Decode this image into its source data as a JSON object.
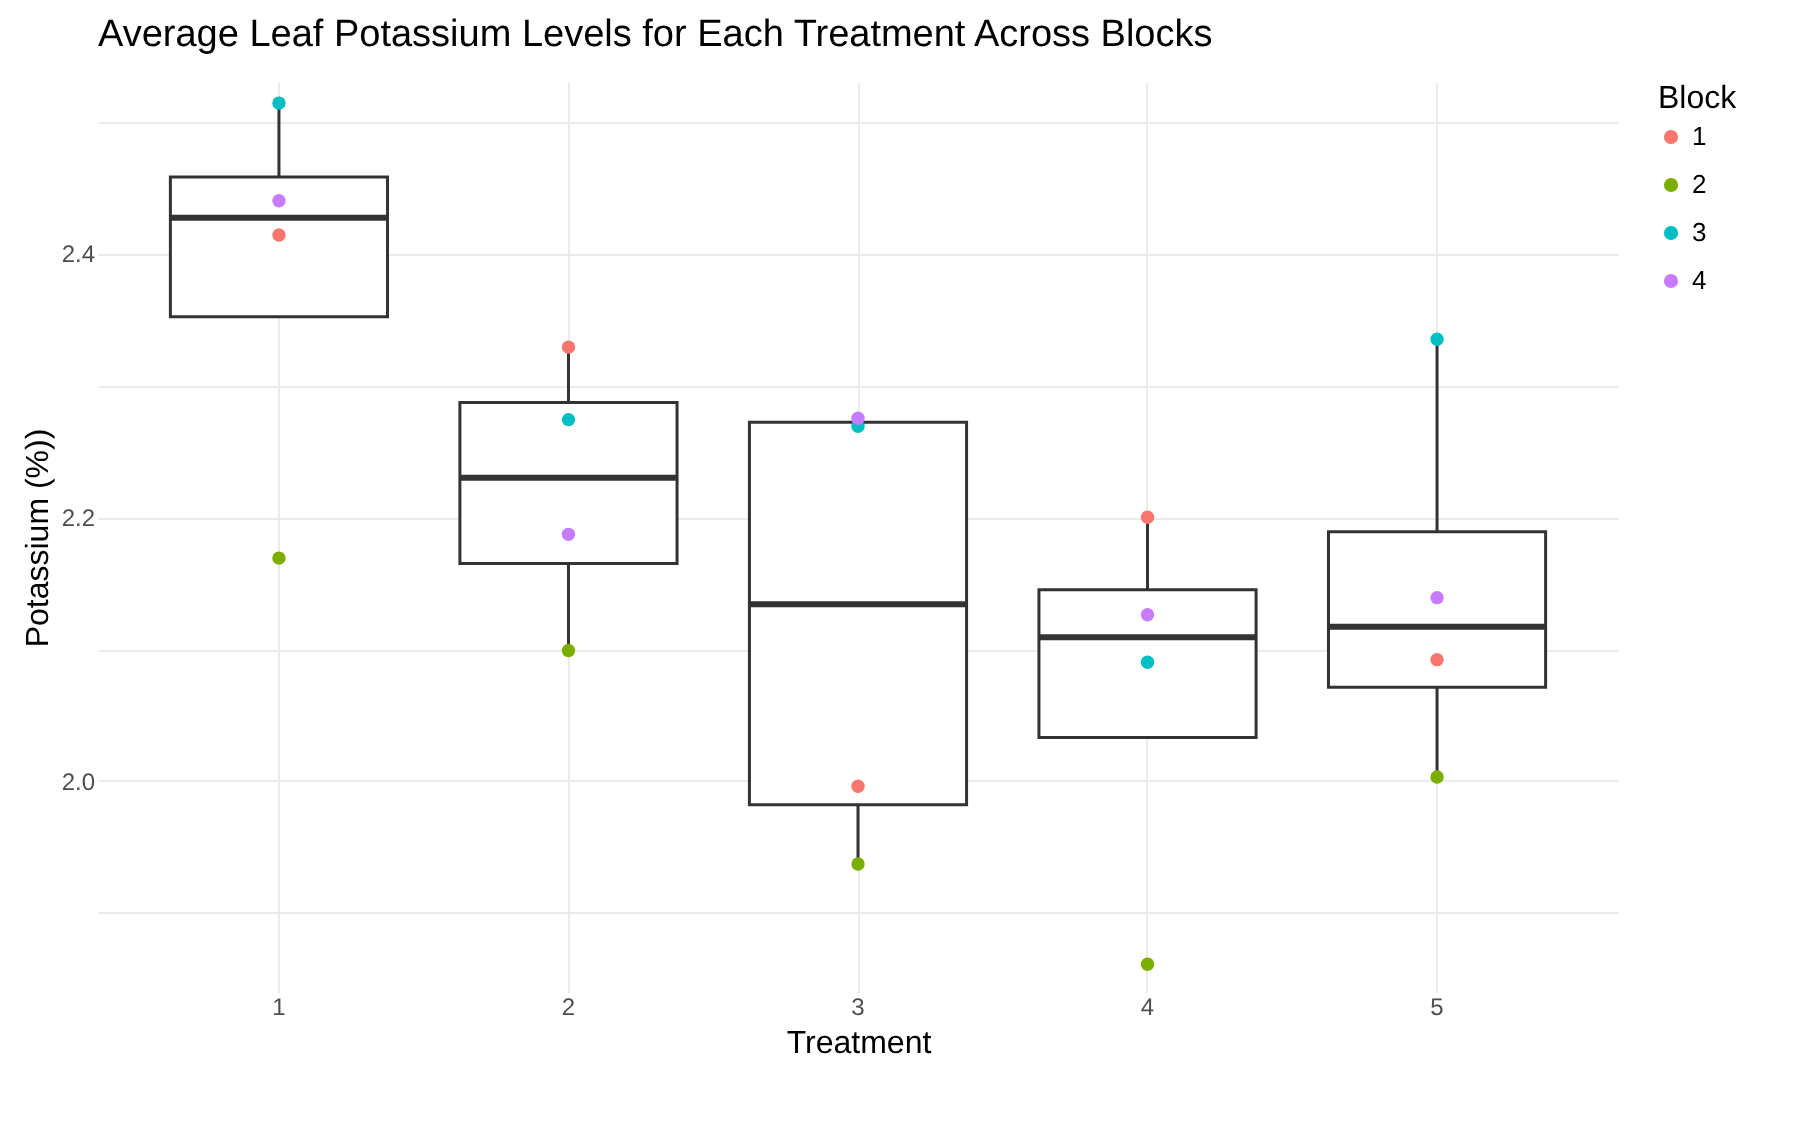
{
  "chart_data": {
    "type": "box",
    "title": "Average Leaf Potassium Levels for Each Treatment Across Blocks",
    "xlabel": "Treatment",
    "ylabel": "Potassium (%))",
    "legend_title": "Block",
    "categories": [
      "1",
      "2",
      "3",
      "4",
      "5"
    ],
    "boxes": [
      {
        "low": 2.352,
        "q1": 2.352,
        "median": 2.427,
        "q3": 2.458,
        "high": 2.514
      },
      {
        "low": 2.099,
        "q1": 2.165,
        "median": 2.23,
        "q3": 2.287,
        "high": 2.329
      },
      {
        "low": 1.937,
        "q1": 1.982,
        "median": 2.134,
        "q3": 2.272,
        "high": 2.275
      },
      {
        "low": 2.033,
        "q1": 2.033,
        "median": 2.109,
        "q3": 2.145,
        "high": 2.2
      },
      {
        "low": 2.003,
        "q1": 2.071,
        "median": 2.117,
        "q3": 2.189,
        "high": 2.335
      }
    ],
    "series": [
      {
        "name": "1",
        "type": "scatter",
        "color": "#f8766d",
        "x": [
          "1",
          "2",
          "3",
          "4",
          "5"
        ],
        "values": [
          2.414,
          2.329,
          1.996,
          2.2,
          2.092
        ]
      },
      {
        "name": "2",
        "type": "scatter",
        "color": "#7cae00",
        "x": [
          "1",
          "2",
          "3",
          "4",
          "5"
        ],
        "values": [
          2.169,
          2.099,
          1.937,
          1.861,
          2.003
        ]
      },
      {
        "name": "3",
        "type": "scatter",
        "color": "#00bfc4",
        "x": [
          "1",
          "2",
          "3",
          "4",
          "5"
        ],
        "values": [
          2.514,
          2.274,
          2.269,
          2.09,
          2.335
        ]
      },
      {
        "name": "4",
        "type": "scatter",
        "color": "#c77cff",
        "x": [
          "1",
          "2",
          "3",
          "4",
          "5"
        ],
        "values": [
          2.44,
          2.187,
          2.275,
          2.126,
          2.139
        ]
      }
    ],
    "ylim": [
      1.84,
      2.53
    ],
    "yticks": [
      {
        "value": 1.9,
        "label": null
      },
      {
        "value": 2,
        "label": "2.0"
      },
      {
        "value": 2.1,
        "label": null
      },
      2.2,
      {
        "value": 2.3,
        "label": null
      },
      2.4,
      {
        "value": 2.5,
        "label": null
      }
    ],
    "grid": true,
    "legend": "right",
    "marker": "circle"
  }
}
